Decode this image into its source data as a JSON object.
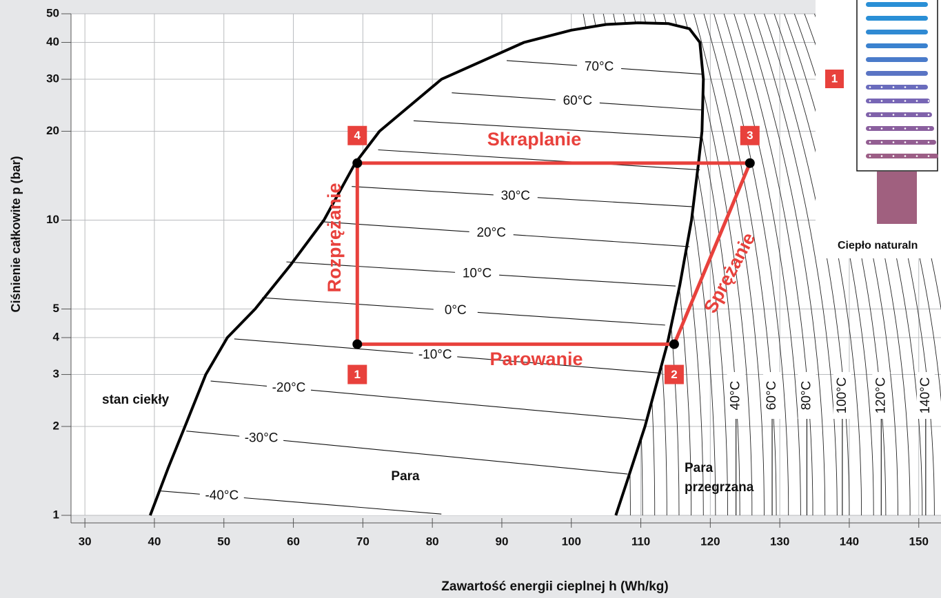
{
  "chart_data": {
    "type": "log-p-h",
    "x_label": "Zawartość energii cieplnej h (Wh/kg)",
    "y_label": "Ciśnienie całkowite p (bar)",
    "xlim": [
      28,
      153.2
    ],
    "ylim": [
      1,
      50
    ],
    "yscale": "log",
    "grid": true,
    "xticks": [
      30,
      40,
      50,
      60,
      70,
      80,
      90,
      100,
      110,
      120,
      130,
      140,
      150
    ],
    "yticks": [
      1,
      2,
      3,
      4,
      5,
      10,
      20,
      30,
      40,
      50
    ],
    "saturation_curve": {
      "color": "#000000",
      "h": [
        39.4,
        42,
        44.4,
        47.4,
        50.5,
        54.5,
        59.5,
        64.4,
        68.9,
        72.4,
        81.3,
        93.2,
        100,
        105,
        109.6,
        114,
        117,
        118.5,
        119,
        118.8,
        118.3,
        117.3,
        115.6,
        113.8,
        110.6,
        108,
        106.4
      ],
      "p": [
        1,
        1.45,
        2,
        3,
        4,
        5,
        7,
        10,
        15.6,
        20,
        30,
        40,
        44,
        46,
        46.6,
        46.3,
        44.5,
        40,
        30,
        20,
        15.6,
        10,
        6,
        3.8,
        2,
        1.3,
        1
      ]
    },
    "isotherms": [
      {
        "name": "-40°C",
        "h": [
          40.8,
          81.3
        ],
        "p": [
          1.21,
          1.01
        ]
      },
      {
        "name": "-30°C",
        "h": [
          44.6,
          108.1
        ],
        "p": [
          1.93,
          1.38
        ]
      },
      {
        "name": "-20°C",
        "h": [
          48.1,
          110.6
        ],
        "p": [
          2.85,
          2.1
        ]
      },
      {
        "name": "-10°C",
        "h": [
          51.5,
          113.0
        ],
        "p": [
          3.96,
          3.03
        ]
      },
      {
        "name": "0°C",
        "h": [
          55.5,
          113.5
        ],
        "p": [
          5.46,
          4.41
        ]
      },
      {
        "name": "10°C",
        "h": [
          59.0,
          115.0
        ],
        "p": [
          7.22,
          5.98
        ]
      },
      {
        "name": "20°C",
        "h": [
          64.2,
          117.0
        ],
        "p": [
          9.87,
          8.13
        ]
      },
      {
        "name": "30°C",
        "h": [
          68.4,
          117.5
        ],
        "p": [
          13.0,
          11.1
        ]
      },
      {
        "h": [
          72.2,
          118.5
        ],
        "p": [
          17.3,
          14.8
        ]
      },
      {
        "h": [
          77.3,
          118.8
        ],
        "p": [
          21.7,
          19.0
        ]
      },
      {
        "name": "60°C",
        "h": [
          82.8,
          119.0
        ],
        "p": [
          27.0,
          23.6
        ]
      },
      {
        "name": "70°C",
        "h": [
          90.7,
          119.0
        ],
        "p": [
          34.7,
          31.2
        ]
      }
    ],
    "superheated_isotherms": [
      {
        "name": "40°C",
        "h": 123.7
      },
      {
        "name": "60°C",
        "h": 128.9
      },
      {
        "name": "80°C",
        "h": 133.9
      },
      {
        "name": "100°C",
        "h": 139.0
      },
      {
        "name": "120°C",
        "h": 144.6
      },
      {
        "name": "140°C",
        "h": 151.0
      }
    ],
    "cycle": {
      "color": "#e8413c",
      "points": [
        "1",
        "2",
        "3",
        "4"
      ],
      "h": [
        69.2,
        114.8,
        125.7,
        69.2
      ],
      "p": [
        3.8,
        3.8,
        15.6,
        15.6
      ]
    },
    "processes": [
      "Parowanie",
      "Sprężanie",
      "Skraplanie",
      "Rozprężanie"
    ],
    "annotations": [
      "stan ciekły",
      "Para",
      "Para",
      "przegrzana"
    ],
    "inset": {
      "badge": "1",
      "caption": "Ciepło naturaln"
    }
  }
}
